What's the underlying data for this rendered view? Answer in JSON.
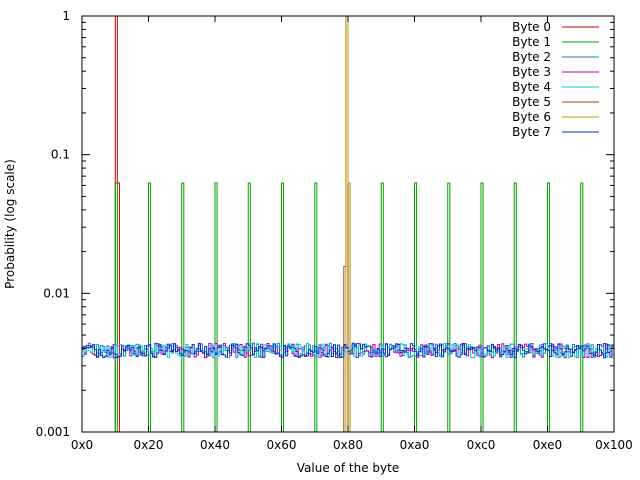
{
  "chart_data": {
    "type": "line",
    "title": "",
    "xlabel": "Value of the byte",
    "ylabel": "Probability (log scale)",
    "xlim": [
      0,
      256
    ],
    "ylim": [
      0.001,
      1
    ],
    "yscale": "log",
    "grid": false,
    "legend_position": "top-right",
    "x_ticks": [
      "0x0",
      "0x20",
      "0x40",
      "0x60",
      "0x80",
      "0xa0",
      "0xc0",
      "0xe0",
      "0x100"
    ],
    "y_ticks": [
      "0.001",
      "0.01",
      "0.1",
      "1"
    ],
    "series": [
      {
        "name": "Byte 0",
        "color": "#cc0000",
        "description_points": [
          [
            16,
            1
          ],
          [
            17,
            0.0625
          ]
        ],
        "baseline": 0.001
      },
      {
        "name": "Byte 1",
        "color": "#00a000",
        "spike_positions": [
          16,
          32,
          48,
          64,
          80,
          96,
          112,
          128,
          144,
          160,
          176,
          192,
          208,
          224,
          240
        ],
        "spike_value": 0.0625,
        "baseline": 0.001
      },
      {
        "name": "Byte 2",
        "color": "#1a82c4",
        "baseline": 0.0039
      },
      {
        "name": "Byte 3",
        "color": "#b000b0",
        "baseline": 0.0039
      },
      {
        "name": "Byte 4",
        "color": "#00d0d0",
        "baseline": 0.0039
      },
      {
        "name": "Byte 5",
        "color": "#a04000",
        "description_points": [
          [
            126,
            0.0156
          ],
          [
            127,
            1
          ]
        ],
        "baseline": 0.001
      },
      {
        "name": "Byte 6",
        "color": "#c0a000",
        "description_points": [
          [
            127,
            1
          ],
          [
            128,
            0.0625
          ]
        ],
        "baseline": 0.001
      },
      {
        "name": "Byte 7",
        "color": "#0030c0",
        "baseline": 0.0039
      }
    ]
  }
}
